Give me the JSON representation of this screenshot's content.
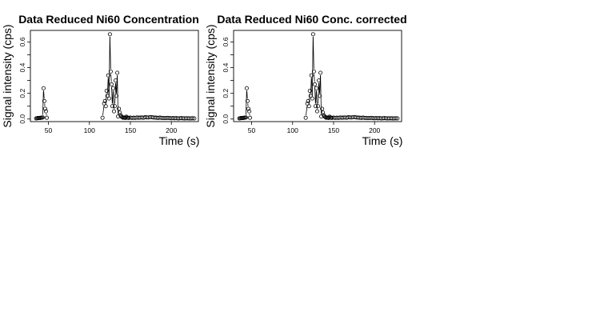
{
  "chart_data": [
    {
      "type": "scatter",
      "title": "Data Reduced Ni60 Concentration",
      "xlabel": "Time (s)",
      "ylabel": "Signal intensity (cps)",
      "xlim": [
        28,
        233
      ],
      "ylim": [
        -0.02,
        0.69
      ],
      "xticks": [
        50,
        100,
        150,
        200
      ],
      "yticks": [
        0.0,
        0.1,
        0.2,
        0.3,
        0.4,
        0.5,
        0.6
      ],
      "ytick_labels": [
        "0.0",
        "0.2",
        "0.4",
        "0.6"
      ],
      "grid": false,
      "legend": "none",
      "x": [
        35,
        36,
        37,
        38,
        39,
        40,
        41,
        42,
        43,
        44,
        45,
        46,
        47,
        48,
        116,
        118,
        119,
        120,
        121,
        122,
        123,
        124,
        125,
        126,
        127,
        128,
        129,
        130,
        131,
        132,
        133,
        134,
        135,
        136,
        137,
        138,
        139,
        140,
        141,
        142,
        143,
        144,
        145,
        146,
        147,
        148,
        150,
        152,
        154,
        156,
        158,
        160,
        162,
        164,
        166,
        168,
        170,
        172,
        174,
        176,
        178,
        180,
        182,
        184,
        186,
        188,
        190,
        192,
        194,
        196,
        198,
        200,
        202,
        204,
        206,
        208,
        210,
        212,
        214,
        216,
        218,
        220,
        222,
        224,
        226,
        228
      ],
      "y": [
        0.005,
        0.006,
        0.008,
        0.007,
        0.009,
        0.008,
        0.01,
        0.011,
        0.012,
        0.24,
        0.14,
        0.08,
        0.06,
        0.01,
        0.01,
        0.12,
        0.14,
        0.1,
        0.22,
        0.18,
        0.34,
        0.16,
        0.66,
        0.37,
        0.27,
        0.1,
        0.24,
        0.06,
        0.1,
        0.3,
        0.18,
        0.36,
        0.02,
        0.08,
        0.05,
        0.03,
        0.02,
        0.015,
        0.01,
        0.012,
        0.01,
        0.008,
        0.018,
        0.012,
        0.01,
        0.009,
        0.011,
        0.008,
        0.01,
        0.009,
        0.012,
        0.01,
        0.011,
        0.012,
        0.01,
        0.014,
        0.013,
        0.012,
        0.015,
        0.014,
        0.012,
        0.011,
        0.01,
        0.009,
        0.011,
        0.009,
        0.008,
        0.007,
        0.008,
        0.009,
        0.007,
        0.006,
        0.008,
        0.006,
        0.007,
        0.005,
        0.006,
        0.007,
        0.006,
        0.005,
        0.006,
        0.006,
        0.005,
        0.005,
        0.006,
        0.005
      ]
    },
    {
      "type": "scatter",
      "title": "Data Reduced Ni60 Conc. corrected",
      "xlabel": "Time (s)",
      "ylabel": "Signal intensity (cps)",
      "xlim": [
        28,
        233
      ],
      "ylim": [
        -0.02,
        0.69
      ],
      "xticks": [
        50,
        100,
        150,
        200
      ],
      "yticks": [
        0.0,
        0.1,
        0.2,
        0.3,
        0.4,
        0.5,
        0.6
      ],
      "ytick_labels": [
        "0.0",
        "0.2",
        "0.4",
        "0.6"
      ],
      "grid": false,
      "legend": "none",
      "x": [
        35,
        36,
        37,
        38,
        39,
        40,
        41,
        42,
        43,
        44,
        45,
        46,
        47,
        48,
        116,
        118,
        119,
        120,
        121,
        122,
        123,
        124,
        125,
        126,
        127,
        128,
        129,
        130,
        131,
        132,
        133,
        134,
        135,
        136,
        137,
        138,
        139,
        140,
        141,
        142,
        143,
        144,
        145,
        146,
        147,
        148,
        150,
        152,
        154,
        156,
        158,
        160,
        162,
        164,
        166,
        168,
        170,
        172,
        174,
        176,
        178,
        180,
        182,
        184,
        186,
        188,
        190,
        192,
        194,
        196,
        198,
        200,
        202,
        204,
        206,
        208,
        210,
        212,
        214,
        216,
        218,
        220,
        222,
        224,
        226,
        228
      ],
      "y": [
        0.005,
        0.006,
        0.008,
        0.007,
        0.009,
        0.008,
        0.01,
        0.011,
        0.012,
        0.24,
        0.14,
        0.08,
        0.06,
        0.01,
        0.01,
        0.12,
        0.14,
        0.1,
        0.22,
        0.18,
        0.34,
        0.16,
        0.66,
        0.37,
        0.27,
        0.1,
        0.24,
        0.06,
        0.1,
        0.3,
        0.18,
        0.36,
        0.02,
        0.08,
        0.05,
        0.03,
        0.02,
        0.015,
        0.01,
        0.012,
        0.01,
        0.008,
        0.018,
        0.012,
        0.01,
        0.009,
        0.011,
        0.008,
        0.01,
        0.009,
        0.012,
        0.01,
        0.011,
        0.012,
        0.01,
        0.014,
        0.013,
        0.012,
        0.015,
        0.014,
        0.012,
        0.011,
        0.01,
        0.009,
        0.011,
        0.009,
        0.008,
        0.007,
        0.008,
        0.009,
        0.007,
        0.006,
        0.008,
        0.006,
        0.007,
        0.005,
        0.006,
        0.007,
        0.006,
        0.005,
        0.006,
        0.006,
        0.005,
        0.005,
        0.006,
        0.005
      ]
    }
  ]
}
